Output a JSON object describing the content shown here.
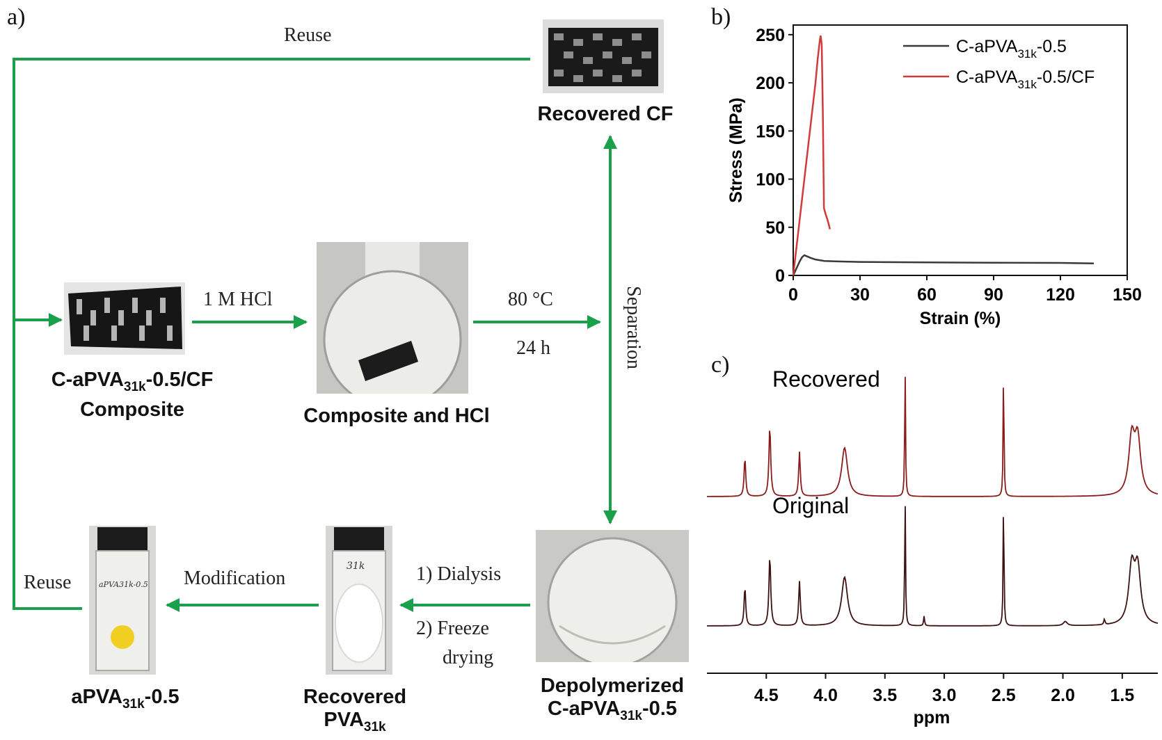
{
  "panel_a": {
    "letter": "a)",
    "labels": {
      "reuse_top": "Reuse",
      "reuse_left": "Reuse",
      "hcl_step": "1 M HCl",
      "temp": "80 °C",
      "time": "24 h",
      "separation": "Separation",
      "dialysis": "1) Dialysis",
      "freeze": "2) Freeze",
      "drying": "drying",
      "modification": "Modification",
      "vial_31k": "31k",
      "vial_apva": "aPVA31k-0.5"
    },
    "captions": {
      "recovered_cf": "Recovered CF",
      "composite_line1_main": "C-aPVA",
      "composite_line1_sub": "31k",
      "composite_line1_tail": "-0.5/CF",
      "composite_line2": "Composite",
      "composite_hcl": "Composite and HCl",
      "depoly_line1": "Depolymerized",
      "depoly_line2_main": "C-aPVA",
      "depoly_line2_sub": "31k",
      "depoly_line2_tail": "-0.5",
      "recovered_pva_line1": "Recovered",
      "recovered_pva_line2_main": "PVA",
      "recovered_pva_line2_sub": "31k",
      "apva_main": "aPVA",
      "apva_sub": "31k",
      "apva_tail": "-0.5"
    },
    "colors": {
      "arrow": "#1aa04a"
    }
  },
  "panel_b": {
    "letter": "b)",
    "chart_data": {
      "type": "line",
      "xlabel": "Strain (%)",
      "ylabel": "Stress (MPa)",
      "xlim": [
        0,
        150
      ],
      "ylim": [
        0,
        260
      ],
      "xticks": [
        0,
        30,
        60,
        90,
        120,
        150
      ],
      "yticks": [
        0,
        50,
        100,
        150,
        200,
        250
      ],
      "legend_position": "top-right",
      "series": [
        {
          "name_main": "C-aPVA",
          "name_sub": "31k",
          "name_tail": "-0.5",
          "color": "#3a3a3a",
          "x": [
            0,
            1,
            2,
            3,
            4,
            5,
            6,
            8,
            10,
            14,
            20,
            30,
            60,
            90,
            120,
            135
          ],
          "y": [
            0,
            5,
            10,
            15,
            19,
            21,
            20,
            18,
            16.5,
            15,
            14.5,
            14,
            13.5,
            13.2,
            13,
            12.5
          ]
        },
        {
          "name_main": "C-aPVA",
          "name_sub": "31k",
          "name_tail": "-0.5/CF",
          "color": "#d23a3a",
          "x": [
            0,
            1,
            2,
            4,
            6,
            8,
            10,
            11,
            12,
            12.3,
            12.8,
            13.3,
            13.8,
            14.5,
            15.5,
            16.5
          ],
          "y": [
            0,
            20,
            40,
            80,
            120,
            160,
            200,
            225,
            245,
            249,
            240,
            170,
            70,
            64,
            57,
            48
          ]
        }
      ]
    }
  },
  "panel_c": {
    "letter": "c)",
    "chart_data": {
      "type": "line",
      "xlabel": "ppm",
      "xlim": [
        5.0,
        1.2
      ],
      "xticks": [
        4.5,
        4.0,
        3.5,
        3.0,
        2.5,
        2.0,
        1.5
      ],
      "x_reversed": true,
      "series": [
        {
          "name": "Recovered",
          "color": "#8a1c1c",
          "peaks_ppm": [
            4.68,
            4.47,
            4.22,
            3.84,
            3.33,
            2.5,
            1.42,
            1.37
          ]
        },
        {
          "name": "Original",
          "color": "#3d1212",
          "peaks_ppm": [
            4.68,
            4.47,
            4.22,
            3.84,
            3.33,
            3.17,
            2.5,
            1.98,
            1.65,
            1.42,
            1.37
          ]
        }
      ]
    }
  }
}
